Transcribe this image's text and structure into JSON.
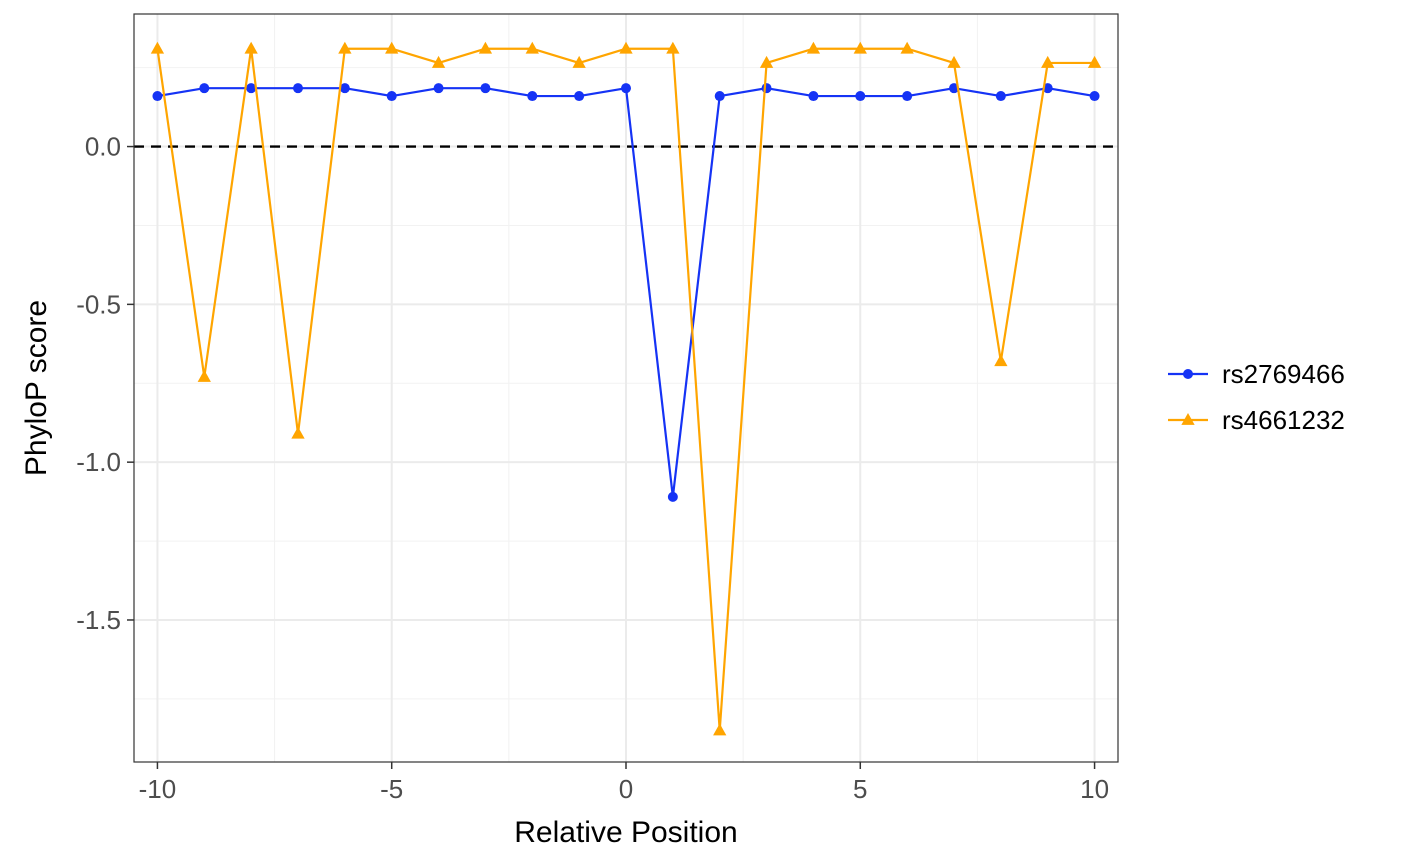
{
  "chart_data": {
    "type": "line",
    "title": "",
    "xlabel": "Relative Position",
    "ylabel": "PhyloP score",
    "xlim": [
      -10.5,
      10.5
    ],
    "ylim": [
      -1.95,
      0.42
    ],
    "x_ticks": [
      -10,
      -5,
      0,
      5,
      10
    ],
    "x_tick_labels": [
      "-10",
      "-5",
      "0",
      "5",
      "10"
    ],
    "y_ticks": [
      0.0,
      -0.5,
      -1.0,
      -1.5
    ],
    "y_tick_labels": [
      "0.0",
      "-0.5",
      "-1.0",
      "-1.5"
    ],
    "grid": true,
    "reference_line": {
      "y": 0.0,
      "style": "dashed",
      "color": "#000000"
    },
    "legend_position": "right",
    "x": [
      -10,
      -9,
      -8,
      -7,
      -6,
      -5,
      -4,
      -3,
      -2,
      -1,
      0,
      1,
      2,
      3,
      4,
      5,
      6,
      7,
      8,
      9,
      10
    ],
    "series": [
      {
        "name": "rs2769466",
        "color": "#1533F5",
        "marker": "circle",
        "values": [
          0.16,
          0.185,
          0.185,
          0.185,
          0.185,
          0.16,
          0.185,
          0.185,
          0.16,
          0.16,
          0.185,
          -1.11,
          0.16,
          0.185,
          0.16,
          0.16,
          0.16,
          0.185,
          0.16,
          0.185,
          0.16
        ]
      },
      {
        "name": "rs4661232",
        "color": "#FFA500",
        "marker": "triangle",
        "values": [
          0.31,
          -0.73,
          0.31,
          -0.91,
          0.31,
          0.31,
          0.265,
          0.31,
          0.31,
          0.265,
          0.31,
          0.31,
          -1.85,
          0.265,
          0.31,
          0.31,
          0.31,
          0.265,
          -0.68,
          0.265,
          0.265
        ]
      }
    ]
  }
}
